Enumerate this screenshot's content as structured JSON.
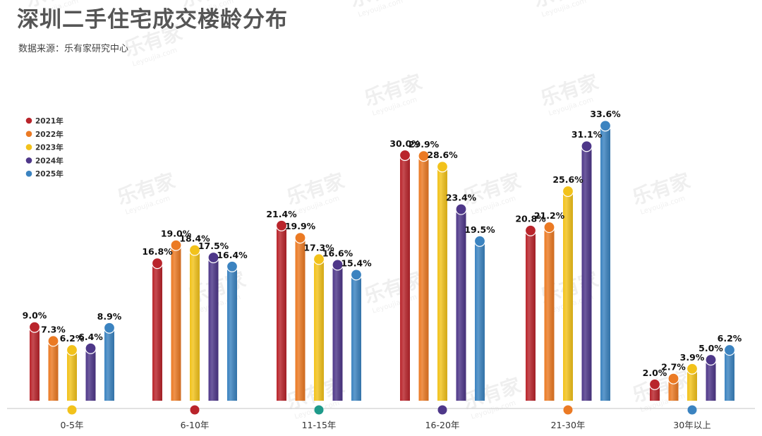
{
  "title": "深圳二手住宅成交楼龄分布",
  "source": "数据来源：乐有家研究中心",
  "watermark": {
    "brand": "乐有家",
    "url": "Leyoujia.com"
  },
  "colors": {
    "2021年": "#B9242B",
    "2022年": "#EB7A24",
    "2023年": "#F2C21B",
    "2024年": "#4E3789",
    "2025年": "#3B83C0",
    "teal_marker": "#1E9A8A",
    "axis": "#d0d0d0",
    "label": "#111111"
  },
  "chart_data": {
    "type": "bar",
    "categories": [
      "0-5年",
      "6-10年",
      "11-15年",
      "16-20年",
      "21-30年",
      "30年以上"
    ],
    "series": [
      {
        "name": "2021年",
        "values": [
          9.0,
          16.8,
          21.4,
          30.0,
          20.8,
          2.0
        ]
      },
      {
        "name": "2022年",
        "values": [
          7.3,
          19.0,
          19.9,
          29.9,
          21.2,
          2.7
        ]
      },
      {
        "name": "2023年",
        "values": [
          6.2,
          18.4,
          17.3,
          28.6,
          25.6,
          3.9
        ]
      },
      {
        "name": "2024年",
        "values": [
          6.4,
          17.5,
          16.6,
          23.4,
          31.1,
          5.0
        ]
      },
      {
        "name": "2025年",
        "values": [
          8.9,
          16.4,
          15.4,
          19.5,
          33.6,
          6.2
        ]
      }
    ],
    "value_labels": [
      [
        "9.0%",
        "16.8%",
        "21.4%",
        "30.0%",
        "20.8%",
        "2.0%"
      ],
      [
        "7.3%",
        "19.0%",
        "19.9%",
        "29.9%",
        "21.2%",
        "2.7%"
      ],
      [
        "6.2%",
        "18.4%",
        "17.3%",
        "28.6%",
        "25.6%",
        "3.9%"
      ],
      [
        "6.4%",
        "17.5%",
        "16.6%",
        "23.4%",
        "31.1%",
        "5.0%"
      ],
      [
        "8.9%",
        "16.4%",
        "15.4%",
        "19.5%",
        "33.6%",
        "6.2%"
      ]
    ],
    "category_marker_colors": [
      "#F2C21B",
      "#B9242B",
      "#1E9A8A",
      "#4E3789",
      "#EB7A24",
      "#3B83C0"
    ],
    "ylim": [
      0,
      35
    ],
    "legend_position": "top-left",
    "grid": false
  }
}
